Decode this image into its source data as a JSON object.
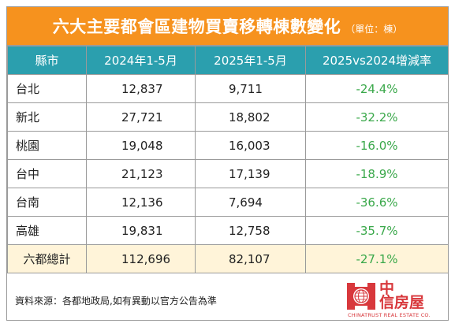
{
  "title": "六大主要都會區建物買賣移轉棟數變化",
  "unit": "（單位：棟）",
  "chart_data": {
    "type": "table",
    "columns": [
      "縣市",
      "2024年1-5月",
      "2025年1-5月",
      "2025vs2024增減率"
    ],
    "rows": [
      {
        "city": "台北",
        "y2024": "12,837",
        "y2025": "9,711",
        "change": "-24.4%"
      },
      {
        "city": "新北",
        "y2024": "27,721",
        "y2025": "18,802",
        "change": "-32.2%"
      },
      {
        "city": "桃園",
        "y2024": "19,048",
        "y2025": "16,003",
        "change": "-16.0%"
      },
      {
        "city": "台中",
        "y2024": "21,123",
        "y2025": "17,139",
        "change": "-18.9%"
      },
      {
        "city": "台南",
        "y2024": "12,136",
        "y2025": "7,694",
        "change": "-36.6%"
      },
      {
        "city": "高雄",
        "y2024": "19,831",
        "y2025": "12,758",
        "change": "-35.7%"
      }
    ],
    "total": {
      "city": "六都總計",
      "y2024": "112,696",
      "y2025": "82,107",
      "change": "-27.1%"
    }
  },
  "note": "資料來源：各都地政局,如有異動以官方公告為準",
  "logo": {
    "cn_line1": "中",
    "cn_line2": "信房屋",
    "en": "CHINATRUST REAL ESTATE CO."
  },
  "colors": {
    "header": "#f6921e",
    "column_header": "#2b9fae",
    "change_text": "#3aa84a",
    "total_row": "#fff4d9",
    "logo": "#d8383c"
  }
}
